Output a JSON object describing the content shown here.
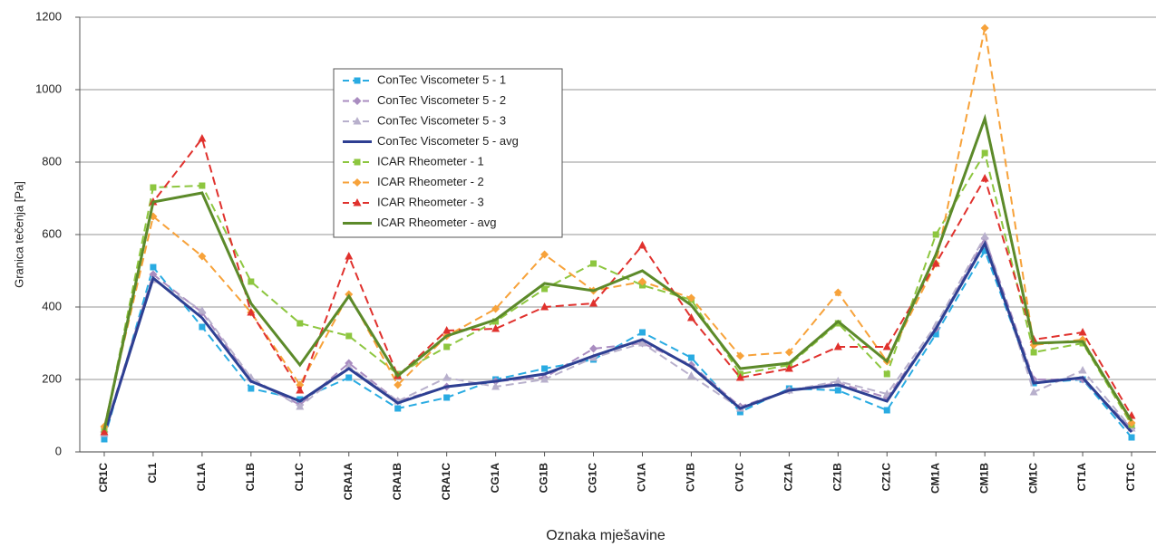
{
  "chart_data": {
    "type": "line",
    "y_label": "Granica tečenja [Pa]",
    "x_label": "Oznaka mješavine",
    "categories": [
      "CR1C",
      "CL1",
      "CL1A",
      "CL1B",
      "CL1C",
      "CRA1A",
      "CRA1B",
      "CRA1C",
      "CG1A",
      "CG1B",
      "CG1C",
      "CV1A",
      "CV1B",
      "CV1C",
      "CZ1A",
      "CZ1B",
      "CZ1C",
      "CM1A",
      "CM1B",
      "CM1C",
      "CT1A",
      "CT1C"
    ],
    "ylim": [
      0,
      1200
    ],
    "yticks": [
      0,
      200,
      400,
      600,
      800,
      1000,
      1200
    ],
    "grid": true,
    "series": [
      {
        "name": "ConTec Viscometer 5 - 1",
        "color": "#29abe2",
        "style": "dashed",
        "marker": "square",
        "values": [
          35,
          510,
          345,
          175,
          145,
          205,
          120,
          150,
          200,
          230,
          255,
          330,
          260,
          110,
          175,
          170,
          115,
          325,
          555,
          190,
          200,
          40
        ]
      },
      {
        "name": "ConTec Viscometer 5 - 2",
        "color": "#a98cc0",
        "style": "dashed",
        "marker": "diamond",
        "values": [
          55,
          490,
          385,
          200,
          130,
          245,
          140,
          180,
          195,
          205,
          285,
          300,
          240,
          125,
          170,
          190,
          150,
          340,
          590,
          200,
          200,
          65
        ]
      },
      {
        "name": "ConTec Viscometer 5 - 3",
        "color": "#b8b0cc",
        "style": "dashed",
        "marker": "triangle",
        "values": [
          50,
          475,
          390,
          205,
          125,
          235,
          140,
          205,
          180,
          200,
          260,
          300,
          210,
          120,
          170,
          195,
          160,
          350,
          595,
          165,
          225,
          65
        ]
      },
      {
        "name": "ConTec Viscometer 5 - avg",
        "color": "#2e3f92",
        "style": "solid",
        "marker": "none",
        "values": [
          50,
          480,
          370,
          195,
          140,
          230,
          135,
          180,
          195,
          215,
          265,
          310,
          235,
          120,
          170,
          185,
          140,
          340,
          575,
          190,
          205,
          55
        ]
      },
      {
        "name": "ICAR Rheometer - 1",
        "color": "#8dc63f",
        "style": "dashed",
        "marker": "square",
        "values": [
          60,
          730,
          735,
          470,
          355,
          320,
          215,
          290,
          360,
          450,
          520,
          460,
          420,
          215,
          240,
          355,
          215,
          600,
          825,
          275,
          300,
          75
        ]
      },
      {
        "name": "ICAR Rheometer - 2",
        "color": "#f7a23a",
        "style": "dashed",
        "marker": "diamond",
        "values": [
          70,
          650,
          540,
          385,
          185,
          435,
          185,
          320,
          395,
          545,
          445,
          470,
          425,
          265,
          275,
          440,
          250,
          520,
          1170,
          295,
          310,
          80
        ]
      },
      {
        "name": "ICAR Rheometer - 3",
        "color": "#e0312d",
        "style": "dashed",
        "marker": "triangle",
        "values": [
          55,
          690,
          865,
          385,
          170,
          540,
          210,
          335,
          340,
          400,
          410,
          570,
          370,
          205,
          230,
          290,
          290,
          520,
          755,
          310,
          330,
          100
        ]
      },
      {
        "name": "ICAR Rheometer - avg",
        "color": "#5c8a2a",
        "style": "solid",
        "marker": "none",
        "values": [
          60,
          690,
          715,
          410,
          240,
          430,
          210,
          320,
          365,
          465,
          445,
          500,
          405,
          230,
          245,
          360,
          250,
          545,
          920,
          300,
          305,
          85
        ]
      }
    ]
  }
}
